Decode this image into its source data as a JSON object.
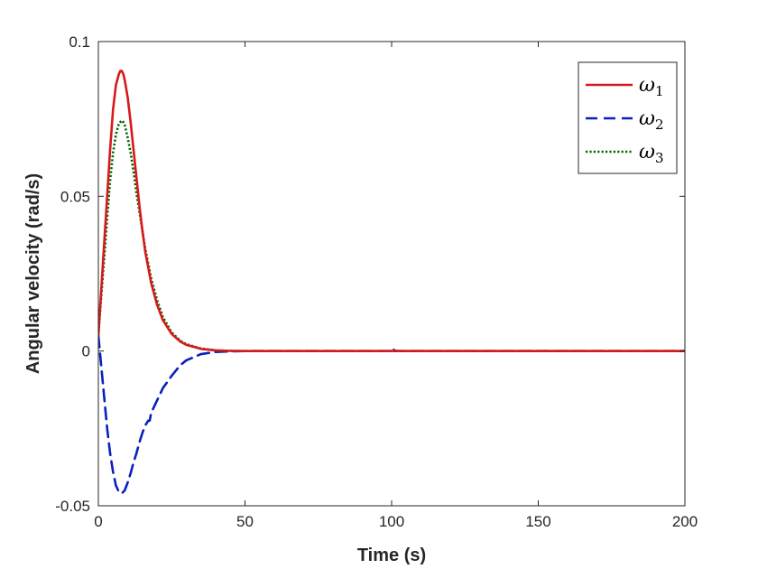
{
  "chart_data": {
    "type": "line",
    "title": "",
    "xlabel": "Time (s)",
    "ylabel": "Angular velocity (rad/s)",
    "xlim": [
      0,
      200
    ],
    "ylim": [
      -0.05,
      0.1
    ],
    "xticks": [
      0,
      50,
      100,
      150,
      200
    ],
    "xtick_labels": [
      "0",
      "50",
      "100",
      "150",
      "200"
    ],
    "yticks": [
      -0.05,
      0,
      0.05,
      0.1
    ],
    "ytick_labels": [
      "-0.05",
      "0",
      "0.05",
      "0.1"
    ],
    "grid": false,
    "legend_position": "top-right",
    "series": [
      {
        "name": "ω1",
        "symbol": "ω",
        "subscript": "1",
        "color": "#d7191c",
        "style": "solid",
        "x": [
          0,
          1,
          2,
          3,
          4,
          5,
          6,
          7,
          7.5,
          8,
          8.5,
          9,
          10,
          11,
          12,
          13,
          14,
          15,
          16,
          18,
          20,
          22,
          25,
          28,
          30,
          35,
          40,
          45,
          50,
          100,
          101,
          102,
          150,
          200
        ],
        "y": [
          0.005,
          0.02,
          0.035,
          0.05,
          0.065,
          0.078,
          0.086,
          0.0895,
          0.0905,
          0.0905,
          0.0895,
          0.0875,
          0.082,
          0.074,
          0.065,
          0.056,
          0.047,
          0.039,
          0.032,
          0.022,
          0.015,
          0.01,
          0.0055,
          0.003,
          0.002,
          0.0007,
          0.0002,
          5e-05,
          0,
          0,
          0.0002,
          0,
          0,
          0
        ]
      },
      {
        "name": "ω2",
        "symbol": "ω",
        "subscript": "2",
        "color": "#0a1fbf",
        "style": "dashed",
        "x": [
          0,
          1,
          2,
          3,
          4,
          5,
          6,
          7,
          8,
          9,
          10,
          11,
          12,
          13,
          14,
          15,
          16,
          17,
          17.5,
          18,
          20,
          22,
          25,
          28,
          30,
          35,
          40,
          45,
          50,
          100,
          100.5,
          101,
          150,
          200
        ],
        "y": [
          0.005,
          -0.005,
          -0.015,
          -0.025,
          -0.033,
          -0.039,
          -0.0435,
          -0.0455,
          -0.046,
          -0.045,
          -0.0425,
          -0.0395,
          -0.036,
          -0.033,
          -0.0295,
          -0.0265,
          -0.024,
          -0.0225,
          -0.0225,
          -0.02,
          -0.016,
          -0.012,
          -0.008,
          -0.0045,
          -0.003,
          -0.001,
          -0.0003,
          -0.0001,
          0,
          0,
          0.0008,
          0,
          0,
          0
        ]
      },
      {
        "name": "ω3",
        "symbol": "ω",
        "subscript": "3",
        "color": "#006400",
        "style": "dotted",
        "x": [
          0,
          1,
          2,
          3,
          4,
          5,
          6,
          7,
          8,
          8.5,
          9,
          10,
          11,
          12,
          13,
          14,
          15,
          16,
          18,
          20,
          22,
          25,
          28,
          30,
          35,
          40,
          45,
          50,
          100,
          200
        ],
        "y": [
          0.005,
          0.018,
          0.03,
          0.043,
          0.055,
          0.064,
          0.07,
          0.0735,
          0.0745,
          0.074,
          0.073,
          0.069,
          0.064,
          0.058,
          0.051,
          0.045,
          0.039,
          0.033,
          0.0235,
          0.0165,
          0.011,
          0.006,
          0.0033,
          0.0022,
          0.0008,
          0.0002,
          5e-05,
          0,
          0,
          0
        ]
      }
    ]
  }
}
